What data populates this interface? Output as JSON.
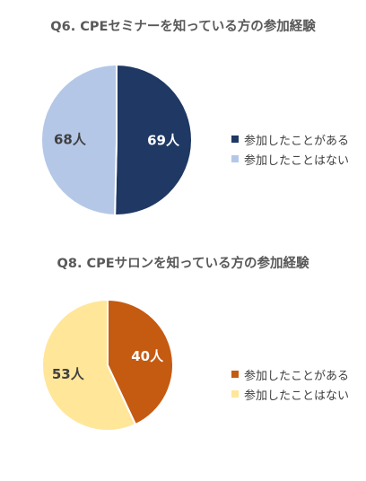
{
  "chart_data": [
    {
      "type": "pie",
      "title": "Q6. CPEセミナーを知っている方の参加経験",
      "categories": [
        "参加したことがある",
        "参加したことはない"
      ],
      "values": [
        69,
        68
      ],
      "labels": [
        "69人",
        "68人"
      ],
      "colors": [
        "#1f3864",
        "#b4c7e7"
      ],
      "label_colors": [
        "#ffffff",
        "#404040"
      ],
      "legend_placement": "right"
    },
    {
      "type": "pie",
      "title": "Q8. CPEサロンを知っている方の参加経験",
      "categories": [
        "参加したことがある",
        "参加したことはない"
      ],
      "values": [
        40,
        53
      ],
      "labels": [
        "40人",
        "53人"
      ],
      "colors": [
        "#c55a11",
        "#ffe699"
      ],
      "label_colors": [
        "#ffffff",
        "#404040"
      ],
      "legend_placement": "right"
    }
  ]
}
